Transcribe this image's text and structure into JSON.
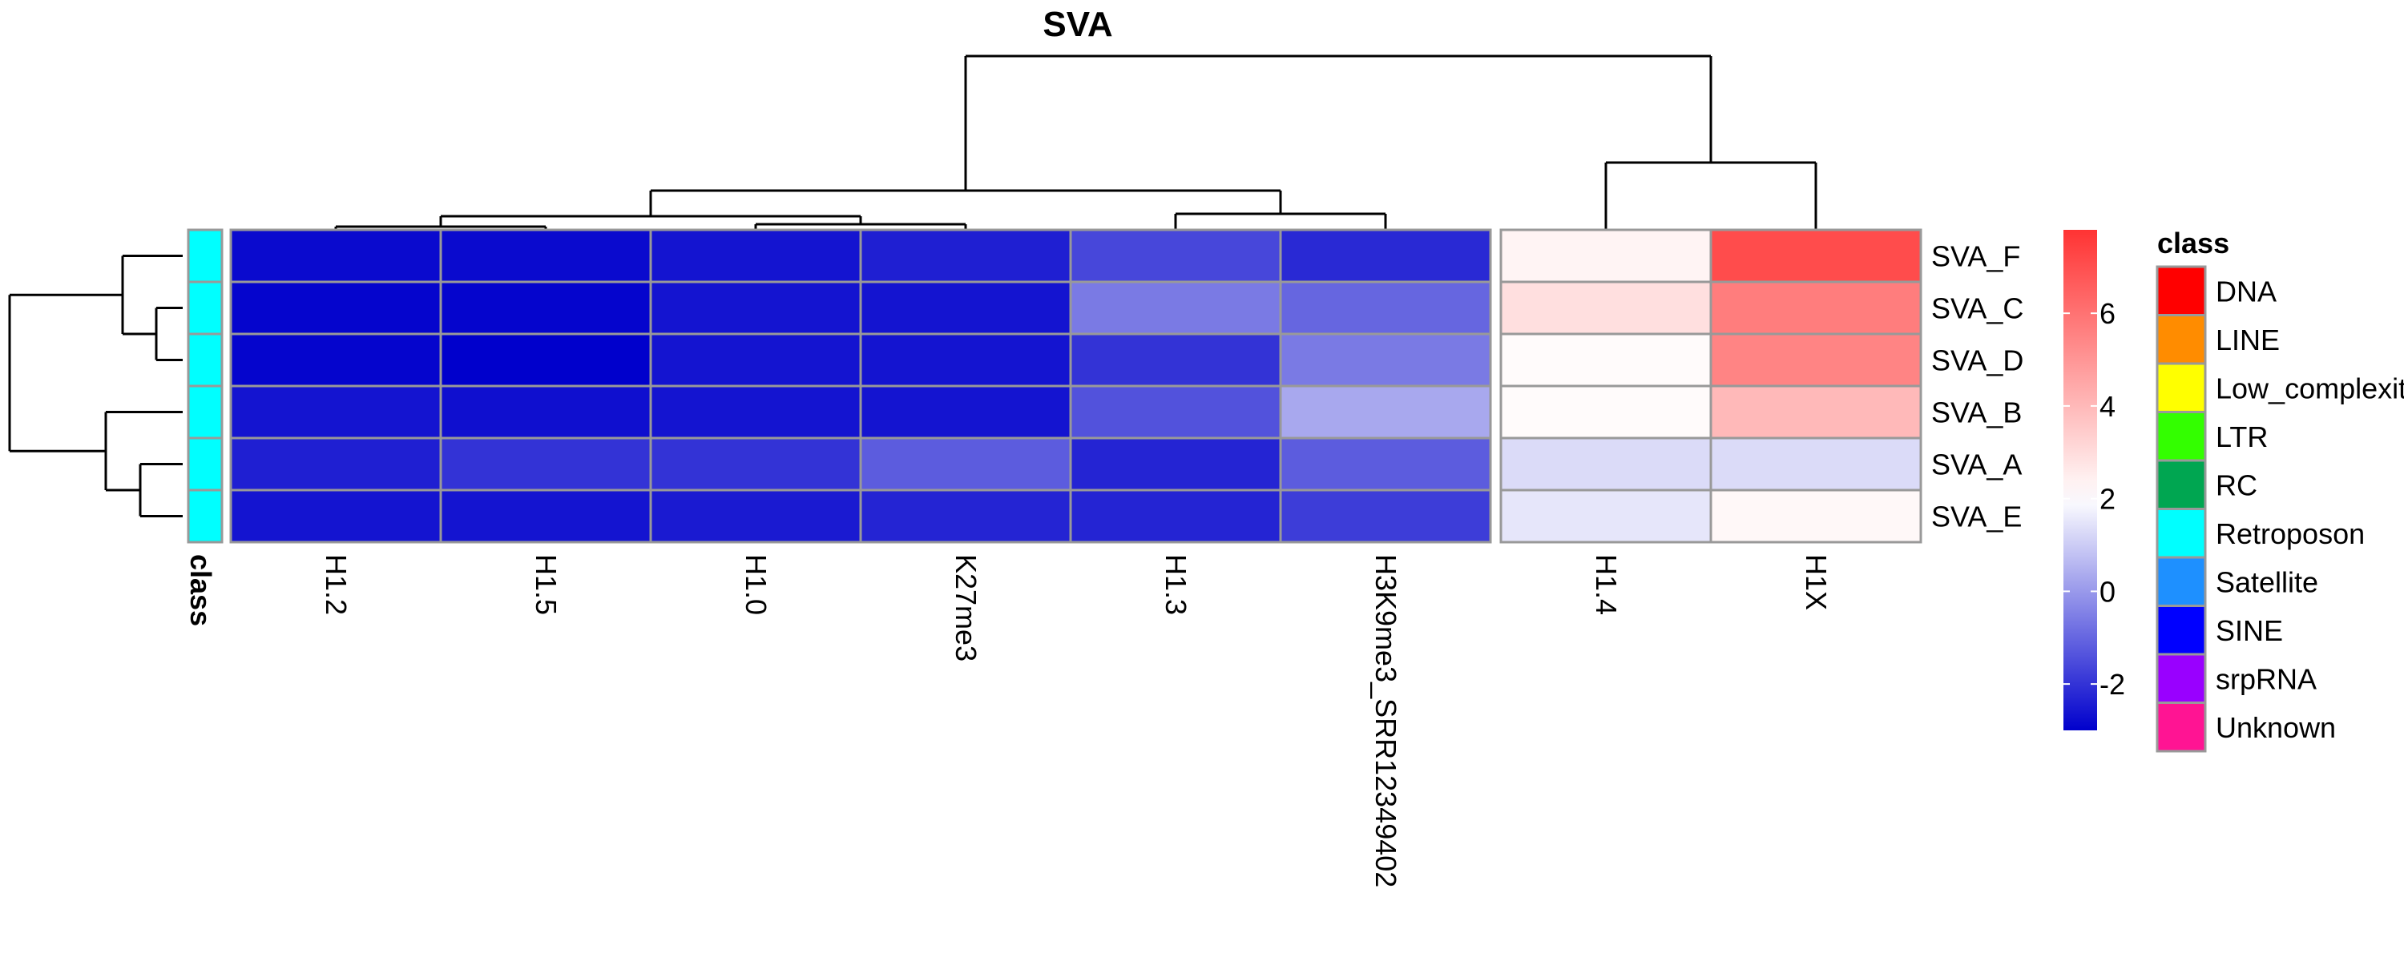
{
  "chart_data": {
    "type": "heatmap",
    "title": "SVA",
    "columns": [
      "H1.2",
      "H1.5",
      "H1.0",
      "K27me3",
      "H1.3",
      "H3K9me3_SRR12349402",
      "H1.4",
      "H1X"
    ],
    "rows": [
      "SVA_F",
      "SVA_C",
      "SVA_D",
      "SVA_B",
      "SVA_A",
      "SVA_E"
    ],
    "values": [
      [
        -2.8,
        -2.8,
        -2.6,
        -2.4,
        -1.6,
        -2.2,
        2.3,
        7.1
      ],
      [
        -2.9,
        -2.9,
        -2.6,
        -2.6,
        -0.6,
        -1.0,
        2.9,
        5.7
      ],
      [
        -2.9,
        -3.0,
        -2.6,
        -2.6,
        -2.0,
        -0.6,
        2.1,
        5.5
      ],
      [
        -2.6,
        -2.7,
        -2.6,
        -2.6,
        -1.4,
        0.3,
        2.1,
        4.0
      ],
      [
        -2.4,
        -2.0,
        -2.0,
        -1.2,
        -2.3,
        -1.2,
        1.3,
        1.3
      ],
      [
        -2.6,
        -2.6,
        -2.5,
        -2.3,
        -2.3,
        -1.8,
        1.5,
        2.2
      ]
    ],
    "column_split": [
      6,
      2
    ],
    "row_annotation": {
      "name": "class",
      "values": [
        "Retroposon",
        "Retroposon",
        "Retroposon",
        "Retroposon",
        "Retroposon",
        "Retroposon"
      ]
    },
    "color_scale": {
      "ticks": [
        -2,
        0,
        2,
        4,
        6
      ],
      "range": [
        -3,
        7.8
      ],
      "low_color": "#0000CC",
      "mid_color": "#FFFFFF",
      "high_color": "#FF3333",
      "mid_value": 2
    },
    "legend": {
      "title": "class",
      "items": [
        {
          "label": "DNA",
          "color": "#FF0000"
        },
        {
          "label": "LINE",
          "color": "#FF8C00"
        },
        {
          "label": "Low_complexity",
          "color": "#FFFF00"
        },
        {
          "label": "LTR",
          "color": "#33FF00"
        },
        {
          "label": "RC",
          "color": "#00A651"
        },
        {
          "label": "Retroposon",
          "color": "#00FFFF"
        },
        {
          "label": "Satellite",
          "color": "#1E90FF"
        },
        {
          "label": "SINE",
          "color": "#0000FF"
        },
        {
          "label": "srpRNA",
          "color": "#9900FF"
        },
        {
          "label": "Unknown",
          "color": "#FF1493"
        }
      ],
      "position": "right"
    }
  }
}
